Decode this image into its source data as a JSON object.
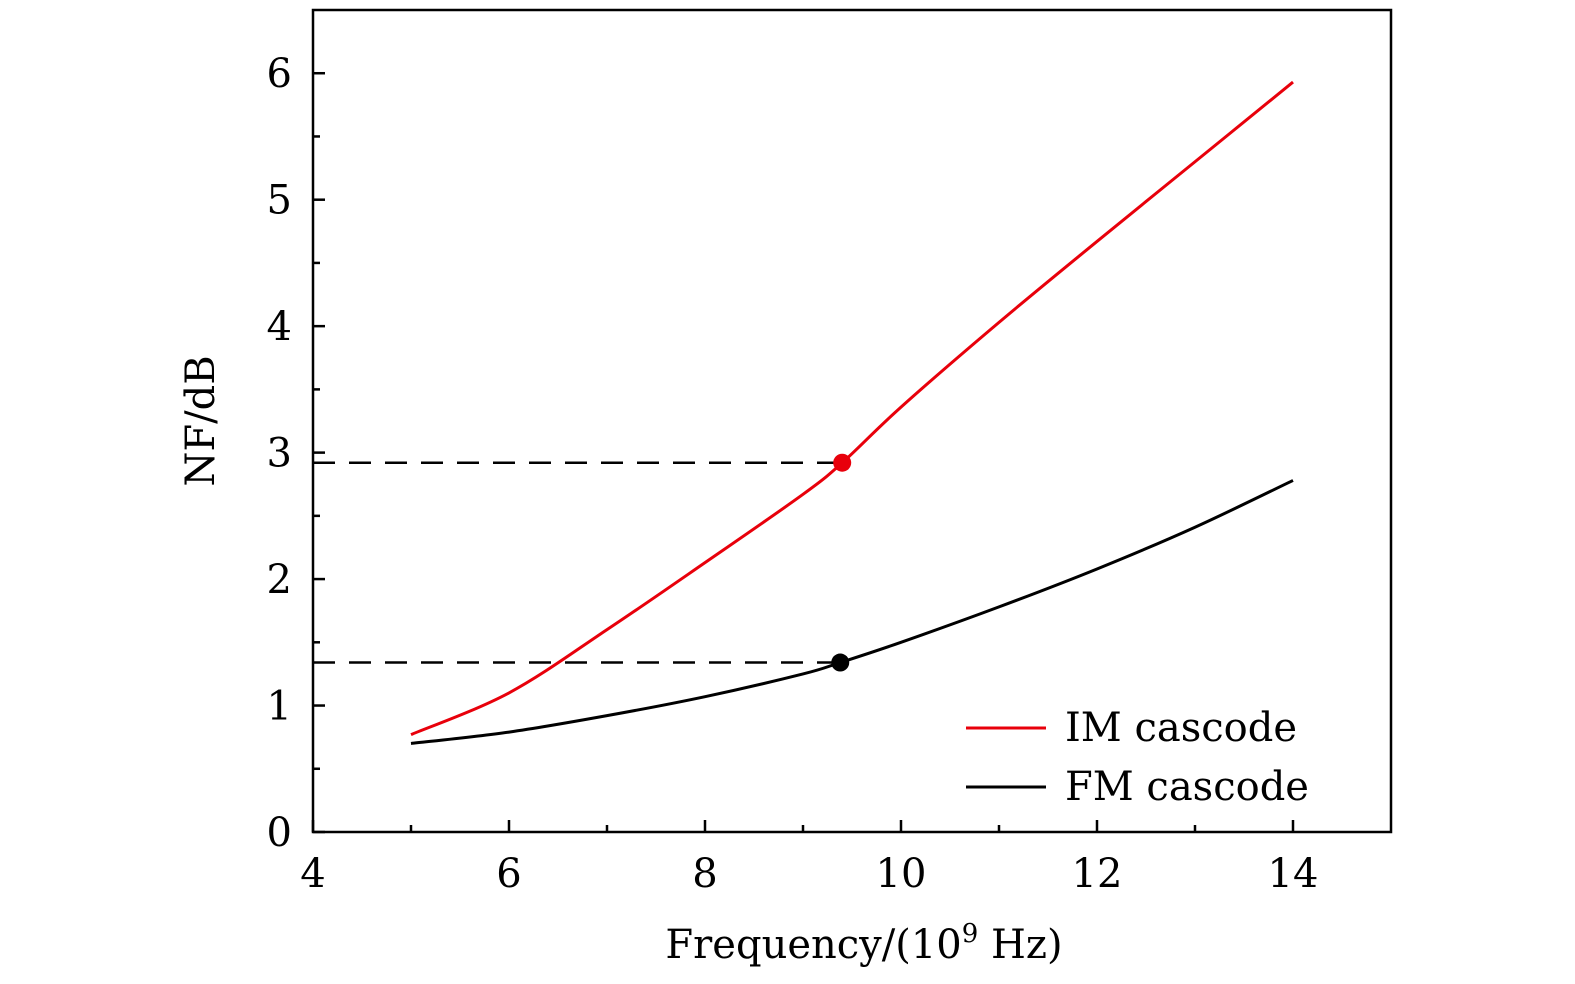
{
  "chart_data": {
    "type": "line",
    "title": "",
    "xlabel_main": "Frequency/(10",
    "xlabel_sup": "9",
    "xlabel_tail": " Hz)",
    "ylabel": "NF/dB",
    "xlim": [
      4,
      15
    ],
    "ylim": [
      0,
      6.5
    ],
    "xticks": [
      4,
      6,
      8,
      10,
      12,
      14
    ],
    "xtick_labels": [
      "4",
      "6",
      "8",
      "10",
      "12",
      "14"
    ],
    "xminor": [
      5,
      7,
      9,
      11,
      13
    ],
    "yticks": [
      0,
      1,
      2,
      3,
      4,
      5,
      6
    ],
    "ytick_labels": [
      "0",
      "1",
      "2",
      "3",
      "4",
      "5",
      "6"
    ],
    "yminor": [
      0.5,
      1.5,
      2.5,
      3.5,
      4.5,
      5.5
    ],
    "legend_position": "bottom-right",
    "series": [
      {
        "name": "IM cascode",
        "color": "#e8000b",
        "x": [
          5,
          6,
          7,
          8,
          9,
          9.4,
          10,
          11,
          12,
          13,
          14
        ],
        "y": [
          0.77,
          1.1,
          1.6,
          2.13,
          2.67,
          2.92,
          3.36,
          4.03,
          4.67,
          5.3,
          5.93
        ]
      },
      {
        "name": "FM cascode",
        "color": "#000000",
        "x": [
          5,
          6,
          7,
          8,
          9,
          9.38,
          10,
          11,
          12,
          13,
          14
        ],
        "y": [
          0.7,
          0.79,
          0.92,
          1.07,
          1.25,
          1.34,
          1.5,
          1.78,
          2.08,
          2.41,
          2.78
        ]
      }
    ],
    "markers": [
      {
        "x": 9.4,
        "y": 2.92,
        "color": "#e8000b"
      },
      {
        "x": 9.38,
        "y": 1.34,
        "color": "#000000"
      }
    ]
  }
}
